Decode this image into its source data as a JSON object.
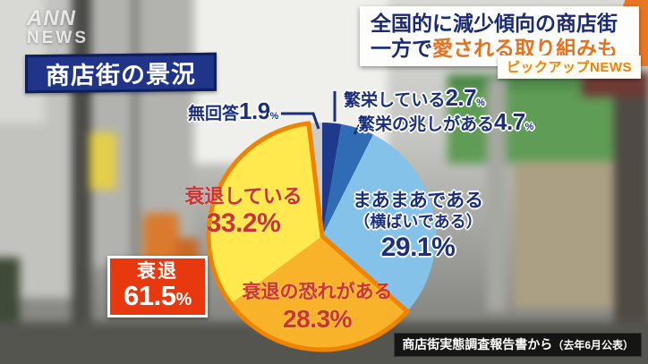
{
  "watermark": {
    "brand": "ANN",
    "sub": "NEWS"
  },
  "headline": {
    "line1": "全国的に減少傾向の商店街",
    "line2_prefix": "一方で",
    "line2_highlight": "愛される取り組みも",
    "badge": "ピックアップNEWS",
    "accent_color": "#e8711c"
  },
  "page_title": "商店街の景況",
  "chart_data": {
    "type": "pie",
    "title": "商店街の景況",
    "unit": "%",
    "start_angle_deg": 0,
    "direction": "clockwise-from-12",
    "slices": [
      {
        "label": "繁栄している",
        "value": 2.7,
        "pct": "2.7",
        "color": "#1d3a8c"
      },
      {
        "label": "繁栄の兆しがある",
        "value": 4.7,
        "pct": "4.7",
        "color": "#2f6cb3"
      },
      {
        "label": "まあまあである",
        "sublabel": "（横ばいである）",
        "value": 29.1,
        "pct": "29.1",
        "color": "#85c2ea"
      },
      {
        "label": "衰退の恐れがある",
        "value": 28.3,
        "pct": "28.3",
        "color": "#f9b32a"
      },
      {
        "label": "衰退している",
        "value": 33.2,
        "pct": "33.2",
        "color": "#ffe94e"
      },
      {
        "label": "無回答",
        "value": 1.9,
        "pct": "1.9",
        "color": "#cfccc6"
      }
    ],
    "highlight": {
      "label": "衰退",
      "pct": "61.5",
      "from_index": 3,
      "to_index": 4,
      "outline_color": "#f08300",
      "box_color": "#e8380d"
    }
  },
  "source": {
    "label": "商店街実態調査報告書から",
    "note": "（去年6月公表）"
  }
}
